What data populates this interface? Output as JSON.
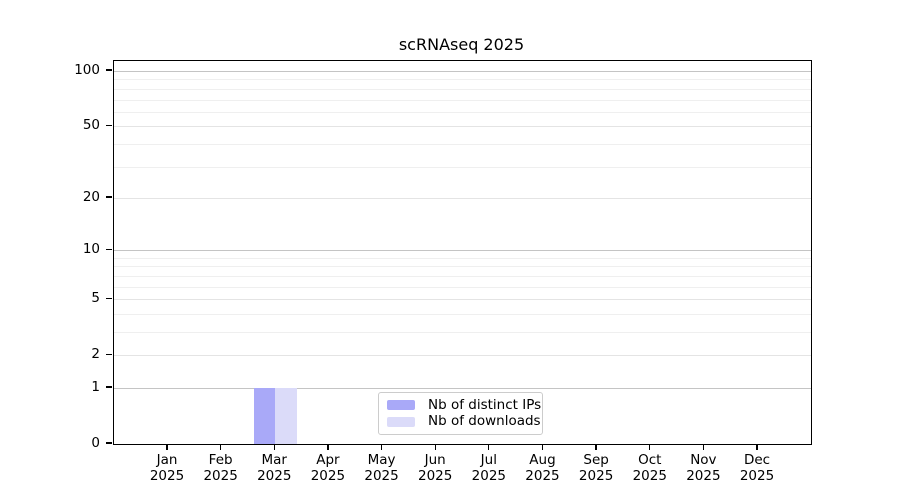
{
  "chart_data": {
    "type": "bar",
    "title": "scRNAseq 2025",
    "xlabel": "",
    "ylabel": "",
    "categories": [
      {
        "month": "Jan",
        "year": "2025"
      },
      {
        "month": "Feb",
        "year": "2025"
      },
      {
        "month": "Mar",
        "year": "2025"
      },
      {
        "month": "Apr",
        "year": "2025"
      },
      {
        "month": "May",
        "year": "2025"
      },
      {
        "month": "Jun",
        "year": "2025"
      },
      {
        "month": "Jul",
        "year": "2025"
      },
      {
        "month": "Aug",
        "year": "2025"
      },
      {
        "month": "Sep",
        "year": "2025"
      },
      {
        "month": "Oct",
        "year": "2025"
      },
      {
        "month": "Nov",
        "year": "2025"
      },
      {
        "month": "Dec",
        "year": "2025"
      }
    ],
    "series": [
      {
        "name": "Nb of distinct IPs",
        "color": "#a9a9f8",
        "values": [
          0,
          0,
          1,
          0,
          0,
          0,
          0,
          0,
          0,
          0,
          0,
          0
        ]
      },
      {
        "name": "Nb of downloads",
        "color": "#dbdbf9",
        "values": [
          0,
          0,
          1,
          0,
          0,
          0,
          0,
          0,
          0,
          0,
          0,
          0
        ]
      }
    ],
    "y_axis": {
      "scale": "log10(1+value)",
      "ylim": [
        0,
        100
      ],
      "ticks": [
        "0",
        "1",
        "2",
        "5",
        "10",
        "20",
        "50",
        "100"
      ],
      "major_gridlines": [
        1,
        10,
        100
      ],
      "mid_gridlines": [
        2,
        5,
        20,
        50
      ],
      "minor_gridlines": [
        3,
        4,
        6,
        7,
        8,
        9,
        30,
        40,
        60,
        70,
        80,
        90
      ]
    },
    "legend": {
      "position": "bottom-center",
      "entries": [
        "Nb of distinct IPs",
        "Nb of downloads"
      ]
    },
    "grid": "on"
  },
  "colors": {
    "background": "#ffffff",
    "spine": "#000000",
    "text": "#000000",
    "grid_major": "#c4c4c4",
    "grid_mid": "#e4e4e4",
    "grid_minor": "#efefef",
    "legend_border": "#cccccc"
  }
}
